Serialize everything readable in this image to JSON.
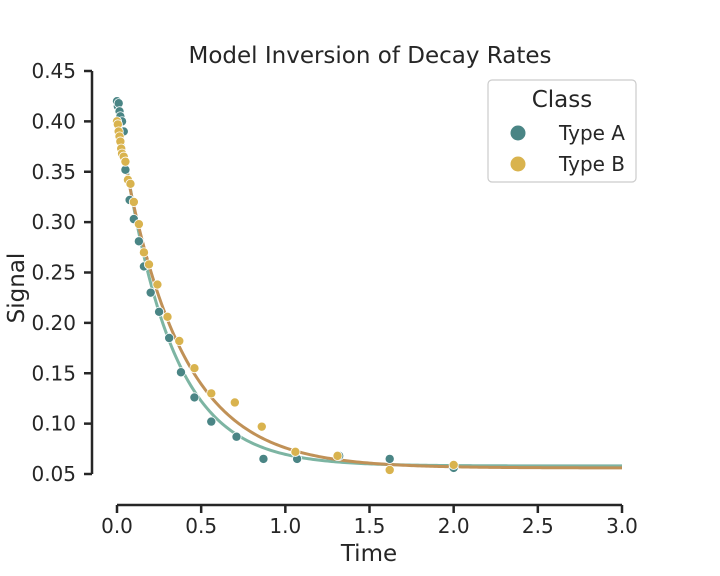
{
  "chart_data": {
    "type": "scatter",
    "title": "Model Inversion of Decay Rates",
    "xlabel": "Time",
    "ylabel": "Signal",
    "xlim": [
      0.0,
      3.0
    ],
    "ylim": [
      0.045,
      0.45
    ],
    "xticks": [
      "0.0",
      "0.5",
      "1.0",
      "1.5",
      "2.0",
      "2.5",
      "3.0"
    ],
    "yticks": [
      "0.05",
      "0.10",
      "0.15",
      "0.20",
      "0.25",
      "0.30",
      "0.35",
      "0.40",
      "0.45"
    ],
    "grid": false,
    "legend": {
      "title": "Class",
      "placement": "top-right"
    },
    "series": [
      {
        "name": "Type A",
        "marker_color": "#4a8585",
        "line_color": "#7db5a3",
        "fit": {
          "a": 0.362,
          "k": 3.45,
          "c": 0.058
        },
        "points": [
          [
            0.0,
            0.42
          ],
          [
            0.005,
            0.415
          ],
          [
            0.01,
            0.418
          ],
          [
            0.015,
            0.41
          ],
          [
            0.02,
            0.405
          ],
          [
            0.03,
            0.4
          ],
          [
            0.04,
            0.39
          ],
          [
            0.05,
            0.352
          ],
          [
            0.075,
            0.322
          ],
          [
            0.1,
            0.303
          ],
          [
            0.13,
            0.281
          ],
          [
            0.16,
            0.256
          ],
          [
            0.2,
            0.23
          ],
          [
            0.25,
            0.211
          ],
          [
            0.31,
            0.185
          ],
          [
            0.38,
            0.151
          ],
          [
            0.46,
            0.126
          ],
          [
            0.56,
            0.102
          ],
          [
            0.71,
            0.087
          ],
          [
            0.87,
            0.065
          ],
          [
            1.07,
            0.065
          ],
          [
            1.32,
            0.068
          ],
          [
            1.62,
            0.065
          ],
          [
            2.0,
            0.056
          ]
        ]
      },
      {
        "name": "Type B",
        "marker_color": "#d9b34e",
        "line_color": "#c09157",
        "fit": {
          "a": 0.346,
          "k": 2.85,
          "c": 0.056
        },
        "points": [
          [
            0.0,
            0.4
          ],
          [
            0.005,
            0.397
          ],
          [
            0.01,
            0.39
          ],
          [
            0.015,
            0.385
          ],
          [
            0.02,
            0.38
          ],
          [
            0.025,
            0.373
          ],
          [
            0.03,
            0.368
          ],
          [
            0.04,
            0.365
          ],
          [
            0.05,
            0.36
          ],
          [
            0.065,
            0.342
          ],
          [
            0.08,
            0.338
          ],
          [
            0.1,
            0.32
          ],
          [
            0.13,
            0.298
          ],
          [
            0.16,
            0.27
          ],
          [
            0.19,
            0.258
          ],
          [
            0.24,
            0.238
          ],
          [
            0.3,
            0.206
          ],
          [
            0.37,
            0.182
          ],
          [
            0.46,
            0.155
          ],
          [
            0.56,
            0.13
          ],
          [
            0.7,
            0.121
          ],
          [
            0.86,
            0.097
          ],
          [
            1.06,
            0.072
          ],
          [
            1.31,
            0.068
          ],
          [
            1.62,
            0.054
          ],
          [
            2.0,
            0.059
          ]
        ]
      }
    ]
  }
}
